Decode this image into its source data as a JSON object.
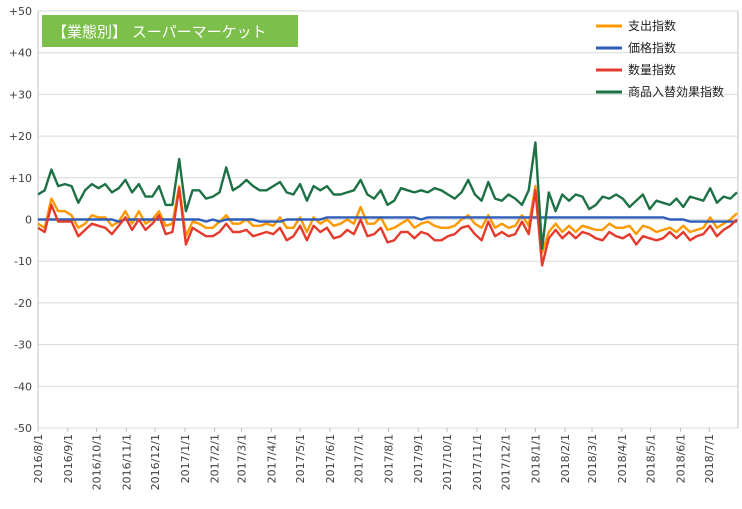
{
  "chart_data": {
    "type": "line",
    "title": "【業態別】 スーパーマーケット",
    "colors": {
      "title_bg": "#7cbf4a",
      "grid": "#d9d9d9",
      "axis": "#bfbfbf"
    },
    "ylim": [
      -50,
      50
    ],
    "yticks": [
      "+50",
      "+40",
      "+30",
      "+20",
      "+10",
      "0",
      "-10",
      "-20",
      "-30",
      "-40",
      "-50"
    ],
    "grid": true,
    "legend_position": "top-right",
    "x_start": "2016/8/1",
    "x_end": "2018/7/31",
    "xtick_labels": [
      "2016/8/1",
      "2016/9/1",
      "2016/10/1",
      "2016/11/1",
      "2016/12/1",
      "2017/1/1",
      "2017/2/1",
      "2017/3/1",
      "2017/4/1",
      "2017/5/1",
      "2017/6/1",
      "2017/7/1",
      "2017/8/1",
      "2017/9/1",
      "2017/10/1",
      "2017/11/1",
      "2017/12/1",
      "2018/1/1",
      "2018/2/1",
      "2018/3/1",
      "2018/4/1",
      "2018/5/1",
      "2018/6/1",
      "2018/7/1"
    ],
    "x": [
      "2016/8/1",
      "2016/8/8",
      "2016/8/15",
      "2016/8/22",
      "2016/8/29",
      "2016/9/5",
      "2016/9/12",
      "2016/9/19",
      "2016/9/26",
      "2016/10/3",
      "2016/10/10",
      "2016/10/17",
      "2016/10/24",
      "2016/10/31",
      "2016/11/7",
      "2016/11/14",
      "2016/11/21",
      "2016/11/28",
      "2016/12/5",
      "2016/12/12",
      "2016/12/19",
      "2016/12/26",
      "2017/1/2",
      "2017/1/9",
      "2017/1/16",
      "2017/1/23",
      "2017/1/30",
      "2017/2/6",
      "2017/2/13",
      "2017/2/20",
      "2017/2/27",
      "2017/3/6",
      "2017/3/13",
      "2017/3/20",
      "2017/3/27",
      "2017/4/3",
      "2017/4/10",
      "2017/4/17",
      "2017/4/24",
      "2017/5/1",
      "2017/5/8",
      "2017/5/15",
      "2017/5/22",
      "2017/5/29",
      "2017/6/5",
      "2017/6/12",
      "2017/6/19",
      "2017/6/26",
      "2017/7/3",
      "2017/7/10",
      "2017/7/17",
      "2017/7/24",
      "2017/7/31",
      "2017/8/7",
      "2017/8/14",
      "2017/8/21",
      "2017/8/28",
      "2017/9/4",
      "2017/9/11",
      "2017/9/18",
      "2017/9/25",
      "2017/10/2",
      "2017/10/9",
      "2017/10/16",
      "2017/10/23",
      "2017/10/30",
      "2017/11/6",
      "2017/11/13",
      "2017/11/20",
      "2017/11/27",
      "2017/12/4",
      "2017/12/11",
      "2017/12/18",
      "2017/12/25",
      "2018/1/1",
      "2018/1/8",
      "2018/1/15",
      "2018/1/22",
      "2018/1/29",
      "2018/2/5",
      "2018/2/12",
      "2018/2/19",
      "2018/2/26",
      "2018/3/5",
      "2018/3/12",
      "2018/3/19",
      "2018/3/26",
      "2018/4/2",
      "2018/4/9",
      "2018/4/16",
      "2018/4/23",
      "2018/4/30",
      "2018/5/7",
      "2018/5/14",
      "2018/5/21",
      "2018/5/28",
      "2018/6/4",
      "2018/6/11",
      "2018/6/18",
      "2018/6/25",
      "2018/7/2",
      "2018/7/9",
      "2018/7/16",
      "2018/7/23",
      "2018/7/30"
    ],
    "series": [
      {
        "name": "支出指数",
        "color": "#ff9900",
        "values": [
          -1.0,
          -2.0,
          5.0,
          2.0,
          2.0,
          1.0,
          -2.0,
          -1.0,
          1.0,
          0.5,
          0.5,
          -1.5,
          -0.5,
          2.0,
          -1.0,
          2.0,
          -1.0,
          0.0,
          2.0,
          -1.5,
          -1.0,
          8.0,
          -4.0,
          -0.5,
          -1.0,
          -2.0,
          -2.0,
          -0.5,
          1.0,
          -1.0,
          -1.0,
          0.0,
          -1.5,
          -1.5,
          -1.0,
          -1.5,
          0.5,
          -2.0,
          -2.0,
          0.5,
          -3.0,
          0.5,
          -1.0,
          0.0,
          -1.5,
          -1.0,
          0.0,
          -1.0,
          3.0,
          -1.0,
          -1.0,
          0.5,
          -2.5,
          -2.0,
          -1.0,
          0.0,
          -2.0,
          -1.0,
          -0.5,
          -1.5,
          -2.0,
          -2.0,
          -1.5,
          0.0,
          1.0,
          -1.0,
          -2.0,
          1.0,
          -2.0,
          -1.0,
          -2.0,
          -1.5,
          1.0,
          -1.5,
          8.0,
          -8.0,
          -3.0,
          -1.0,
          -3.0,
          -1.5,
          -3.0,
          -1.5,
          -2.0,
          -2.5,
          -2.5,
          -1.0,
          -2.0,
          -2.0,
          -1.5,
          -3.5,
          -1.5,
          -2.0,
          -3.0,
          -2.5,
          -2.0,
          -3.0,
          -1.5,
          -3.0,
          -2.5,
          -2.0,
          0.5,
          -2.0,
          -1.0,
          0.0,
          1.5
        ]
      },
      {
        "name": "価格指数",
        "color": "#2e5db8",
        "values": [
          0.0,
          0.0,
          0.0,
          0.0,
          0.0,
          0.0,
          0.0,
          0.0,
          0.0,
          0.0,
          0.0,
          0.0,
          -0.5,
          0.0,
          0.0,
          0.0,
          0.0,
          0.0,
          0.0,
          0.0,
          0.0,
          0.0,
          0.0,
          0.0,
          0.0,
          -0.5,
          0.0,
          -0.5,
          0.0,
          0.0,
          0.0,
          0.0,
          0.0,
          -0.5,
          -0.5,
          -0.5,
          -0.5,
          0.0,
          0.0,
          0.0,
          0.0,
          0.0,
          0.0,
          0.5,
          0.5,
          0.5,
          0.5,
          0.5,
          0.5,
          0.5,
          0.5,
          0.5,
          0.5,
          0.5,
          0.5,
          0.5,
          0.5,
          0.0,
          0.5,
          0.5,
          0.5,
          0.5,
          0.5,
          0.5,
          0.5,
          0.5,
          0.5,
          0.5,
          0.5,
          0.5,
          0.5,
          0.5,
          0.5,
          0.5,
          0.5,
          0.5,
          0.5,
          0.5,
          0.5,
          0.5,
          0.5,
          0.5,
          0.5,
          0.5,
          0.5,
          0.5,
          0.5,
          0.5,
          0.5,
          0.5,
          0.5,
          0.5,
          0.5,
          0.5,
          0.0,
          0.0,
          0.0,
          -0.5,
          -0.5,
          -0.5,
          -0.5,
          -0.5,
          -0.5,
          -0.5,
          -0.5
        ]
      },
      {
        "name": "数量指数",
        "color": "#e53b2c",
        "values": [
          -2.0,
          -3.0,
          3.5,
          -0.5,
          -0.5,
          -0.5,
          -4.0,
          -2.5,
          -1.0,
          -1.5,
          -2.0,
          -3.5,
          -1.5,
          0.5,
          -2.5,
          0.0,
          -2.5,
          -1.0,
          1.0,
          -3.5,
          -3.0,
          7.5,
          -6.0,
          -2.0,
          -3.0,
          -4.0,
          -4.0,
          -3.0,
          -1.0,
          -3.0,
          -3.0,
          -2.5,
          -4.0,
          -3.5,
          -3.0,
          -3.5,
          -2.0,
          -5.0,
          -4.0,
          -1.5,
          -5.0,
          -1.5,
          -3.0,
          -2.0,
          -4.5,
          -4.0,
          -2.5,
          -3.5,
          0.0,
          -4.0,
          -3.5,
          -2.0,
          -5.5,
          -5.0,
          -3.0,
          -3.0,
          -4.5,
          -3.0,
          -3.5,
          -5.0,
          -5.0,
          -4.0,
          -3.5,
          -2.0,
          -1.5,
          -3.5,
          -5.0,
          -0.5,
          -4.0,
          -3.0,
          -4.0,
          -3.5,
          -0.5,
          -3.5,
          7.0,
          -11.0,
          -4.5,
          -2.5,
          -4.5,
          -3.0,
          -4.5,
          -3.0,
          -3.5,
          -4.5,
          -5.0,
          -3.0,
          -4.0,
          -4.5,
          -3.5,
          -6.0,
          -4.0,
          -4.5,
          -5.0,
          -4.5,
          -3.0,
          -4.5,
          -3.0,
          -5.0,
          -4.0,
          -3.5,
          -1.5,
          -4.0,
          -2.5,
          -1.5,
          0.0
        ]
      },
      {
        "name": "商品入替効果指数",
        "color": "#1e7145",
        "values": [
          6.0,
          7.0,
          12.0,
          8.0,
          8.5,
          8.0,
          4.0,
          7.0,
          8.5,
          7.5,
          8.5,
          6.5,
          7.5,
          9.5,
          6.5,
          8.5,
          5.5,
          5.5,
          8.0,
          3.5,
          3.5,
          14.5,
          2.0,
          7.0,
          7.0,
          5.0,
          5.5,
          6.5,
          12.5,
          7.0,
          8.0,
          9.5,
          8.0,
          7.0,
          7.0,
          8.0,
          9.0,
          6.5,
          6.0,
          8.5,
          4.5,
          8.0,
          7.0,
          8.0,
          6.0,
          6.0,
          6.5,
          7.0,
          9.5,
          6.0,
          5.0,
          7.0,
          3.5,
          4.5,
          7.5,
          7.0,
          6.5,
          7.0,
          6.5,
          7.5,
          7.0,
          6.0,
          5.0,
          6.5,
          9.5,
          6.0,
          4.5,
          9.0,
          5.0,
          4.5,
          6.0,
          5.0,
          3.5,
          7.0,
          18.5,
          -7.0,
          6.5,
          2.0,
          6.0,
          4.5,
          6.0,
          5.5,
          2.5,
          3.5,
          5.5,
          5.0,
          6.0,
          5.0,
          3.0,
          4.5,
          6.0,
          2.5,
          4.5,
          4.0,
          3.5,
          5.0,
          3.0,
          5.5,
          5.0,
          4.5,
          7.5,
          4.0,
          5.5,
          5.0,
          6.5
        ]
      }
    ]
  }
}
